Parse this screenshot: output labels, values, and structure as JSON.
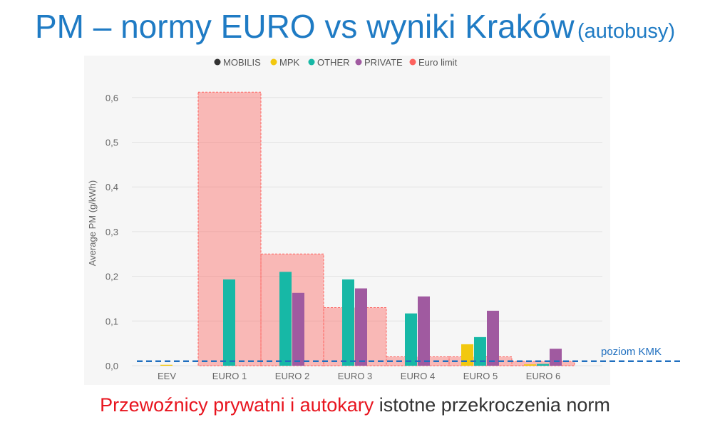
{
  "title": {
    "main": "PM – normy EURO vs wyniki Kraków",
    "sub": "(autobusy)"
  },
  "footer": {
    "highlight": "Przewoźnicy prywatni i autokary",
    "rest": "istotne przekroczenia norm"
  },
  "chart_data": {
    "type": "bar",
    "categories": [
      "EEV",
      "EURO 1",
      "EURO 2",
      "EURO 3",
      "EURO 4",
      "EURO 5",
      "EURO 6"
    ],
    "ylabel": "Average PM (g/kWh)",
    "ylim": [
      0,
      0.6
    ],
    "yticks": [
      "0,0",
      "0,1",
      "0,2",
      "0,3",
      "0,4",
      "0,5",
      "0,6"
    ],
    "grid": true,
    "legend_position": "top",
    "series": [
      {
        "name": "MOBILIS",
        "color": "#333333",
        "values": [
          null,
          null,
          null,
          null,
          null,
          null,
          null
        ]
      },
      {
        "name": "MPK",
        "color": "#f2c80f",
        "values": [
          0.002,
          null,
          null,
          null,
          null,
          0.048,
          0.003
        ]
      },
      {
        "name": "OTHER",
        "color": "#17b8a6",
        "values": [
          null,
          0.193,
          0.21,
          0.193,
          0.117,
          0.064,
          0.004
        ]
      },
      {
        "name": "PRIVATE",
        "color": "#a05aa0",
        "values": [
          null,
          null,
          0.163,
          0.173,
          0.155,
          0.123,
          0.038
        ]
      }
    ],
    "euro_limit": {
      "name": "Euro limit",
      "color": "#fd625e",
      "values": [
        null,
        0.612,
        0.25,
        0.13,
        0.02,
        0.02,
        0.01
      ]
    },
    "reference_line": {
      "label": "poziom KMK",
      "value": 0.01,
      "color": "#1f6fbf"
    }
  }
}
